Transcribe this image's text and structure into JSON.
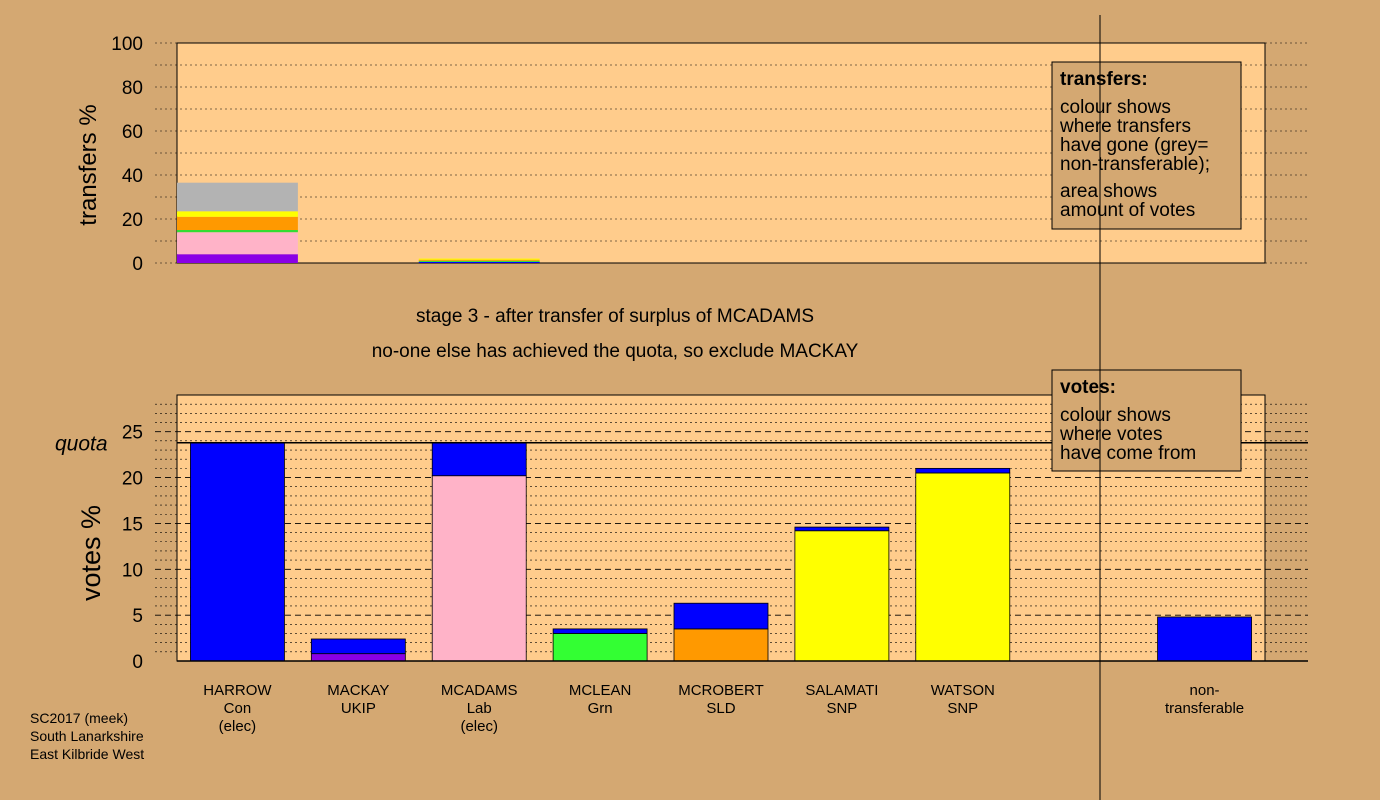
{
  "chart_data": [
    {
      "type": "bar",
      "name": "transfers",
      "ylabel": "transfers %",
      "ylim": [
        0,
        100
      ],
      "yticks": [
        0,
        20,
        40,
        60,
        80,
        100
      ],
      "categories": [
        "HARROW",
        "MACKAY",
        "MCADAMS",
        "MCLEAN",
        "MCROBERT",
        "SALAMATI",
        "WATSON",
        "non-transferable"
      ],
      "bars": [
        {
          "from": "HARROW",
          "segments": [
            {
              "color": "#8a00e6",
              "value": 4
            },
            {
              "color": "#ffb3c8",
              "value": 10
            },
            {
              "color": "#33dd33",
              "value": 1
            },
            {
              "color": "#ff9900",
              "value": 6
            },
            {
              "color": "#ffff00",
              "value": 2.5
            },
            {
              "color": "#b3b3b3",
              "value": 13
            }
          ]
        },
        {
          "from": "MCADAMS",
          "segments": [
            {
              "color": "#0000ff",
              "value": 0.5
            },
            {
              "color": "#33dd33",
              "value": 0.5
            },
            {
              "color": "#ff9900",
              "value": 0.5
            },
            {
              "color": "#ffff00",
              "value": 0.5
            }
          ]
        }
      ],
      "legend": {
        "title": "transfers:",
        "lines": [
          "colour shows",
          "where transfers",
          "have gone (grey=",
          "non-transferable);",
          "area shows",
          "amount of votes"
        ]
      }
    },
    {
      "type": "bar",
      "name": "votes",
      "ylabel": "votes %",
      "ylim": [
        0,
        29
      ],
      "yticks": [
        0,
        5,
        10,
        15,
        20,
        25
      ],
      "quota": 23.8,
      "quota_label": "quota",
      "categories": [
        "HARROW",
        "MACKAY",
        "MCADAMS",
        "MCLEAN",
        "MCROBERT",
        "SALAMATI",
        "WATSON",
        "non-transferable"
      ],
      "labels": [
        [
          "HARROW",
          "Con",
          "(elec)"
        ],
        [
          "MACKAY",
          "UKIP"
        ],
        [
          "MCADAMS",
          "Lab",
          "(elec)"
        ],
        [
          "MCLEAN",
          "Grn"
        ],
        [
          "MCROBERT",
          "SLD"
        ],
        [
          "SALAMATI",
          "SNP"
        ],
        [
          "WATSON",
          "SNP"
        ],
        [
          "non-",
          "transferable"
        ]
      ],
      "stacks": [
        [
          {
            "color": "#0000ff",
            "value": 23.8
          }
        ],
        [
          {
            "color": "#8a00e6",
            "value": 0.8
          },
          {
            "color": "#0000ff",
            "value": 1.6
          }
        ],
        [
          {
            "color": "#ffb3c8",
            "value": 20.2
          },
          {
            "color": "#0000ff",
            "value": 3.6
          }
        ],
        [
          {
            "color": "#33ff33",
            "value": 3.0
          },
          {
            "color": "#0000ff",
            "value": 0.5
          }
        ],
        [
          {
            "color": "#ff9900",
            "value": 3.5
          },
          {
            "color": "#0000ff",
            "value": 2.8
          }
        ],
        [
          {
            "color": "#ffff00",
            "value": 14.2
          },
          {
            "color": "#0000ff",
            "value": 0.4
          }
        ],
        [
          {
            "color": "#ffff00",
            "value": 20.5
          },
          {
            "color": "#0000ff",
            "value": 0.5
          }
        ],
        [
          {
            "color": "#0000ff",
            "value": 4.8
          }
        ]
      ],
      "legend": {
        "title": "votes:",
        "lines": [
          "colour shows",
          "where votes",
          "have come from"
        ]
      }
    }
  ],
  "stage_text": "stage 3 - after transfer of surplus of MCADAMS",
  "stage_subtext": "no-one else has achieved the quota, so exclude MACKAY",
  "footer": [
    "SC2017 (meek)",
    "South Lanarkshire",
    "East Kilbride West"
  ],
  "colors": {
    "background": "#d4a872",
    "plot_background": "#ffcc8c"
  }
}
